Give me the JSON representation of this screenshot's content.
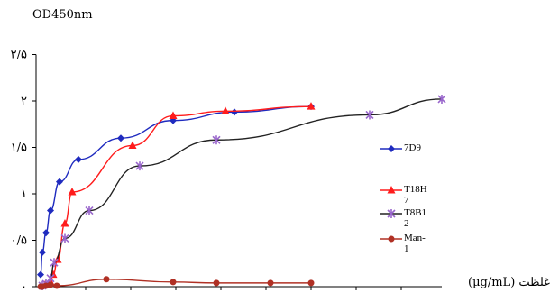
{
  "chart_data": {
    "type": "line",
    "ylabel": "OD450nm",
    "xlabel": "غلظت (µg/mL)",
    "ylim": [
      0,
      2.5
    ],
    "yticks": [
      {
        "value": 0,
        "label": "٠"
      },
      {
        "value": 0.5,
        "label": "٠/۵"
      },
      {
        "value": 1,
        "label": "١"
      },
      {
        "value": 1.5,
        "label": "١/۵"
      },
      {
        "value": 2,
        "label": "٢"
      },
      {
        "value": 2.5,
        "label": "٢/۵"
      }
    ],
    "grid": false,
    "legend_position": "right",
    "series": [
      {
        "name": "7D9",
        "color": "#1f2bbf",
        "marker": "diamond",
        "points": [
          [
            0.0,
            0.13
          ],
          [
            0.31,
            0.37
          ],
          [
            0.62,
            0.58
          ],
          [
            1.25,
            0.82
          ],
          [
            2.5,
            1.13
          ],
          [
            5,
            1.37
          ],
          [
            10,
            1.6
          ],
          [
            20,
            1.79
          ],
          [
            30,
            1.88
          ],
          [
            40,
            1.94
          ]
        ]
      },
      {
        "name": "T18H7",
        "color": "#ff1c1c",
        "marker": "triangle",
        "points": [
          [
            0.0,
            0.02
          ],
          [
            0.31,
            0.05
          ],
          [
            0.62,
            0.13
          ],
          [
            1.25,
            0.29
          ],
          [
            2.5,
            0.68
          ],
          [
            5,
            1.02
          ],
          [
            10,
            1.52
          ],
          [
            20,
            1.84
          ],
          [
            30,
            1.89
          ],
          [
            40,
            1.94
          ]
        ]
      },
      {
        "name": "T8B12",
        "color": "#222222",
        "marker": "x",
        "markerColor": "#9966cc",
        "points": [
          [
            0.0,
            0.01
          ],
          [
            0.31,
            0.03
          ],
          [
            0.62,
            0.09
          ],
          [
            1.25,
            0.26
          ],
          [
            2.5,
            0.52
          ],
          [
            5,
            0.82
          ],
          [
            10,
            1.3
          ],
          [
            20,
            1.58
          ],
          [
            30,
            1.85
          ],
          [
            40,
            2.02
          ]
        ]
      },
      {
        "name": "Man-1",
        "color": "#b03024",
        "marker": "circle",
        "points": [
          [
            0.0,
            0.0
          ],
          [
            0.31,
            0.0
          ],
          [
            0.62,
            0.01
          ],
          [
            1.25,
            0.02
          ],
          [
            2.5,
            0.01
          ],
          [
            5,
            0.08
          ],
          [
            10,
            0.05
          ],
          [
            20,
            0.04
          ],
          [
            30,
            0.04
          ],
          [
            40,
            0.04
          ]
        ]
      }
    ]
  }
}
